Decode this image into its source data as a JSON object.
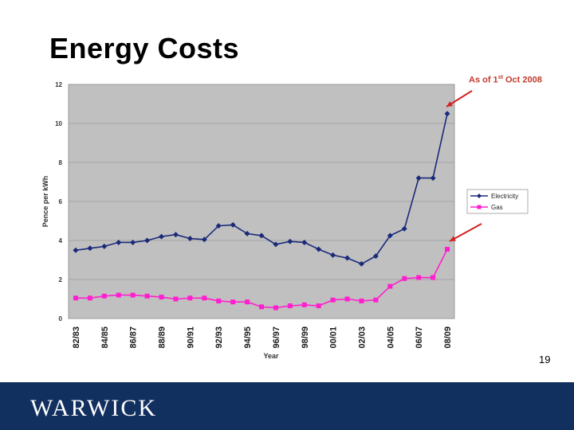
{
  "slide": {
    "title": "Energy Costs",
    "annotation_prefix": "As of 1",
    "annotation_sup": "st",
    "annotation_suffix": " Oct 2008",
    "page_number": "19",
    "logo_text": "WARWICK"
  },
  "colors": {
    "electricity": "#1a2a7a",
    "gas": "#ff1fcf",
    "plot_bg": "#c0c0c0",
    "arrow": "#d42020",
    "footer": "#12305f"
  },
  "chart_data": {
    "type": "line",
    "title": "",
    "xlabel": "Year",
    "ylabel": "Pence per kWh",
    "ylim": [
      0,
      12
    ],
    "yticks": [
      0,
      2,
      4,
      6,
      8,
      10,
      12
    ],
    "grid": true,
    "legend": "right",
    "x": [
      "82/83",
      "83/84",
      "84/85",
      "85/86",
      "86/87",
      "87/88",
      "88/89",
      "89/90",
      "90/91",
      "91/92",
      "92/93",
      "93/94",
      "94/95",
      "95/96",
      "96/97",
      "97/98",
      "98/99",
      "99/00",
      "00/01",
      "01/02",
      "02/03",
      "03/04",
      "04/05",
      "05/06",
      "06/07",
      "07/08",
      "08/09"
    ],
    "xtick_labels": [
      "82/83",
      "84/85",
      "86/87",
      "88/89",
      "90/91",
      "92/93",
      "94/95",
      "96/97",
      "98/99",
      "00/01",
      "02/03",
      "04/05",
      "06/07",
      "08/09"
    ],
    "series": [
      {
        "name": "Electricity",
        "values": [
          3.5,
          3.6,
          3.7,
          3.9,
          3.9,
          4.0,
          4.2,
          4.3,
          4.1,
          4.05,
          4.75,
          4.8,
          4.35,
          4.25,
          3.8,
          3.95,
          3.9,
          3.55,
          3.25,
          3.1,
          2.8,
          3.2,
          4.25,
          4.6,
          7.2,
          7.2,
          10.5
        ]
      },
      {
        "name": "Gas",
        "values": [
          1.05,
          1.05,
          1.15,
          1.2,
          1.2,
          1.15,
          1.1,
          1.0,
          1.05,
          1.05,
          0.9,
          0.85,
          0.85,
          0.6,
          0.55,
          0.65,
          0.7,
          0.65,
          0.95,
          1.0,
          0.9,
          0.95,
          1.65,
          2.05,
          2.1,
          2.1,
          3.55
        ]
      }
    ]
  }
}
